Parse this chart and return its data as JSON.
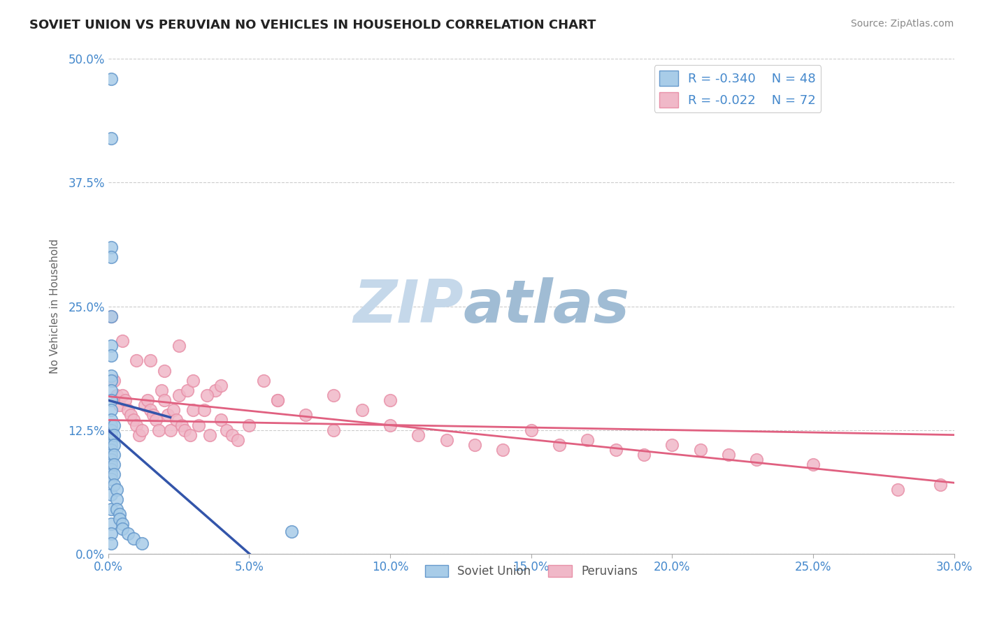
{
  "title": "SOVIET UNION VS PERUVIAN NO VEHICLES IN HOUSEHOLD CORRELATION CHART",
  "source": "Source: ZipAtlas.com",
  "ylabel": "No Vehicles in Household",
  "legend_label1": "Soviet Union",
  "legend_label2": "Peruvians",
  "r1": -0.34,
  "n1": 48,
  "r2": -0.022,
  "n2": 72,
  "xlim": [
    0.0,
    0.3
  ],
  "ylim": [
    0.0,
    0.5
  ],
  "xticks": [
    0.0,
    0.05,
    0.1,
    0.15,
    0.2,
    0.25,
    0.3
  ],
  "yticks": [
    0.0,
    0.125,
    0.25,
    0.375,
    0.5
  ],
  "color_soviet": "#a8cce8",
  "color_soviet_edge": "#6699cc",
  "color_peruvian": "#f0b8c8",
  "color_peruvian_edge": "#e890a8",
  "color_soviet_line": "#3355aa",
  "color_peruvian_line": "#e06080",
  "color_grid": "#cccccc",
  "watermark_zip_color": "#c8d8e8",
  "watermark_atlas_color": "#b0c8e0",
  "background_color": "#ffffff",
  "soviet_x": [
    0.001,
    0.001,
    0.001,
    0.001,
    0.001,
    0.001,
    0.001,
    0.001,
    0.001,
    0.001,
    0.001,
    0.001,
    0.001,
    0.001,
    0.001,
    0.001,
    0.001,
    0.001,
    0.001,
    0.001,
    0.001,
    0.001,
    0.001,
    0.001,
    0.001,
    0.001,
    0.001,
    0.001,
    0.001,
    0.001,
    0.002,
    0.002,
    0.002,
    0.002,
    0.002,
    0.002,
    0.002,
    0.003,
    0.003,
    0.003,
    0.004,
    0.004,
    0.005,
    0.005,
    0.007,
    0.009,
    0.012,
    0.065
  ],
  "soviet_y": [
    0.48,
    0.42,
    0.31,
    0.3,
    0.24,
    0.21,
    0.2,
    0.18,
    0.175,
    0.165,
    0.155,
    0.145,
    0.135,
    0.13,
    0.125,
    0.12,
    0.115,
    0.11,
    0.105,
    0.1,
    0.095,
    0.09,
    0.085,
    0.08,
    0.075,
    0.06,
    0.045,
    0.03,
    0.02,
    0.01,
    0.13,
    0.12,
    0.11,
    0.1,
    0.09,
    0.08,
    0.07,
    0.065,
    0.055,
    0.045,
    0.04,
    0.035,
    0.03,
    0.025,
    0.02,
    0.015,
    0.01,
    0.022
  ],
  "peruvian_x": [
    0.001,
    0.002,
    0.003,
    0.004,
    0.005,
    0.006,
    0.007,
    0.008,
    0.009,
    0.01,
    0.011,
    0.012,
    0.013,
    0.014,
    0.015,
    0.016,
    0.017,
    0.018,
    0.019,
    0.02,
    0.021,
    0.022,
    0.023,
    0.024,
    0.025,
    0.026,
    0.027,
    0.028,
    0.029,
    0.03,
    0.032,
    0.034,
    0.036,
    0.038,
    0.04,
    0.042,
    0.044,
    0.046,
    0.05,
    0.055,
    0.06,
    0.07,
    0.08,
    0.09,
    0.1,
    0.11,
    0.12,
    0.13,
    0.14,
    0.15,
    0.16,
    0.17,
    0.18,
    0.19,
    0.2,
    0.21,
    0.22,
    0.23,
    0.25,
    0.28,
    0.005,
    0.01,
    0.015,
    0.02,
    0.025,
    0.03,
    0.035,
    0.04,
    0.06,
    0.08,
    0.1,
    0.295
  ],
  "peruvian_y": [
    0.24,
    0.175,
    0.16,
    0.15,
    0.16,
    0.155,
    0.145,
    0.14,
    0.135,
    0.13,
    0.12,
    0.125,
    0.15,
    0.155,
    0.145,
    0.14,
    0.135,
    0.125,
    0.165,
    0.155,
    0.14,
    0.125,
    0.145,
    0.135,
    0.16,
    0.13,
    0.125,
    0.165,
    0.12,
    0.145,
    0.13,
    0.145,
    0.12,
    0.165,
    0.135,
    0.125,
    0.12,
    0.115,
    0.13,
    0.175,
    0.155,
    0.14,
    0.125,
    0.145,
    0.13,
    0.12,
    0.115,
    0.11,
    0.105,
    0.125,
    0.11,
    0.115,
    0.105,
    0.1,
    0.11,
    0.105,
    0.1,
    0.095,
    0.09,
    0.065,
    0.215,
    0.195,
    0.195,
    0.185,
    0.21,
    0.175,
    0.16,
    0.17,
    0.155,
    0.16,
    0.155,
    0.07
  ]
}
